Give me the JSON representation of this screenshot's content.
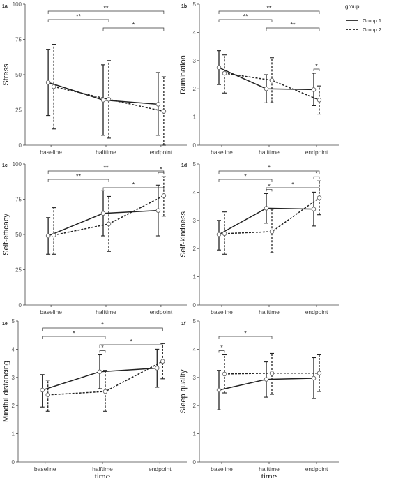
{
  "chart_data": [
    {
      "type": "line",
      "panel_label": "1a",
      "ylabel": "Stress",
      "xlabel": "",
      "categories": [
        "baseline",
        "halftime",
        "endpoint"
      ],
      "ylim": [
        0,
        100
      ],
      "yticks": [
        0,
        25,
        50,
        75,
        100
      ],
      "series": [
        {
          "name": "Group 1",
          "values": [
            44.5,
            32,
            29
          ],
          "lower": [
            21,
            7,
            7
          ],
          "upper": [
            68,
            57,
            51.5
          ]
        },
        {
          "name": "Group 2",
          "values": [
            41.5,
            32.5,
            24
          ],
          "lower": [
            11.5,
            5,
            0
          ],
          "upper": [
            71.5,
            60,
            48.5
          ]
        }
      ],
      "significance": [
        {
          "from": 0,
          "to": 1,
          "label": "**"
        },
        {
          "from": 0,
          "to": 2,
          "label": "**"
        },
        {
          "from": 1,
          "to": 2,
          "label": "*"
        }
      ]
    },
    {
      "type": "line",
      "panel_label": "1b",
      "ylabel": "Rumination",
      "xlabel": "",
      "categories": [
        "baseline",
        "halftime",
        "endpoint"
      ],
      "ylim": [
        0,
        5
      ],
      "yticks": [
        0,
        1,
        2,
        3,
        4,
        5
      ],
      "series": [
        {
          "name": "Group 1",
          "values": [
            2.75,
            2.0,
            1.97
          ],
          "lower": [
            2.15,
            1.5,
            1.4
          ],
          "upper": [
            3.35,
            2.5,
            2.55
          ]
        },
        {
          "name": "Group 2",
          "values": [
            2.55,
            2.3,
            1.6
          ],
          "lower": [
            1.85,
            1.5,
            1.1
          ],
          "upper": [
            3.2,
            3.1,
            2.1
          ]
        }
      ],
      "significance": [
        {
          "from": 0,
          "to": 1,
          "label": "**"
        },
        {
          "from": 0,
          "to": 2,
          "label": "**"
        },
        {
          "from": 1,
          "to": 2,
          "label": "**"
        },
        {
          "from": 2,
          "to": 2,
          "label": "*"
        }
      ]
    },
    {
      "type": "line",
      "panel_label": "1c",
      "ylabel": "Self-efficacy",
      "xlabel": "",
      "categories": [
        "baseline",
        "halftime",
        "endpoint"
      ],
      "ylim": [
        0,
        100
      ],
      "yticks": [
        0,
        25,
        50,
        75,
        100
      ],
      "series": [
        {
          "name": "Group 1",
          "values": [
            49,
            65,
            67
          ],
          "lower": [
            36,
            49,
            49
          ],
          "upper": [
            62,
            81,
            85
          ]
        },
        {
          "name": "Group 2",
          "values": [
            49.5,
            57.5,
            77.5
          ],
          "lower": [
            36,
            38,
            63
          ],
          "upper": [
            69,
            77,
            91
          ]
        }
      ],
      "significance": [
        {
          "from": 0,
          "to": 1,
          "label": "**"
        },
        {
          "from": 0,
          "to": 2,
          "label": "**"
        },
        {
          "from": 1,
          "to": 2,
          "label": "*"
        },
        {
          "from": 2,
          "to": 2,
          "label": "*"
        }
      ]
    },
    {
      "type": "line",
      "panel_label": "1d",
      "ylabel": "Self-kindness",
      "xlabel": "",
      "categories": [
        "baseline",
        "halftime",
        "endpoint"
      ],
      "ylim": [
        0,
        5
      ],
      "yticks": [
        0,
        1,
        2,
        3,
        4,
        5
      ],
      "series": [
        {
          "name": "Group 1",
          "values": [
            2.5,
            3.43,
            3.4
          ],
          "lower": [
            1.95,
            2.9,
            2.8
          ],
          "upper": [
            3.0,
            3.95,
            4.0
          ]
        },
        {
          "name": "Group 2",
          "values": [
            2.53,
            2.6,
            3.8
          ],
          "lower": [
            1.8,
            1.85,
            3.2
          ],
          "upper": [
            3.3,
            3.4,
            4.4
          ]
        }
      ],
      "significance": [
        {
          "from": 0,
          "to": 1,
          "label": "*"
        },
        {
          "from": 0,
          "to": 2,
          "label": "*"
        },
        {
          "from": 1,
          "to": 2,
          "label": "*"
        },
        {
          "from": 1,
          "to": 1,
          "label": "*"
        },
        {
          "from": 2,
          "to": 2,
          "label": "*"
        }
      ]
    },
    {
      "type": "line",
      "panel_label": "1e",
      "ylabel": "Mindful distancing",
      "xlabel": "time",
      "categories": [
        "baseline",
        "halftime",
        "endpoint"
      ],
      "ylim": [
        0,
        5
      ],
      "yticks": [
        0,
        1,
        2,
        3,
        4,
        5
      ],
      "series": [
        {
          "name": "Group 1",
          "values": [
            2.55,
            3.2,
            3.33
          ],
          "lower": [
            1.95,
            2.6,
            2.65
          ],
          "upper": [
            3.1,
            3.8,
            4.0
          ]
        },
        {
          "name": "Group 2",
          "values": [
            2.38,
            2.5,
            3.57
          ],
          "lower": [
            1.8,
            1.8,
            2.95
          ],
          "upper": [
            2.9,
            3.25,
            4.2
          ]
        }
      ],
      "significance": [
        {
          "from": 0,
          "to": 1,
          "label": "*"
        },
        {
          "from": 0,
          "to": 2,
          "label": "*"
        },
        {
          "from": 1,
          "to": 2,
          "label": "*"
        },
        {
          "from": 1,
          "to": 1,
          "label": "*"
        }
      ]
    },
    {
      "type": "line",
      "panel_label": "1f",
      "ylabel": "Sleep quality",
      "xlabel": "time",
      "categories": [
        "baseline",
        "halftime",
        "endpoint"
      ],
      "ylim": [
        0,
        5
      ],
      "yticks": [
        0,
        1,
        2,
        3,
        4,
        5
      ],
      "series": [
        {
          "name": "Group 1",
          "values": [
            2.55,
            2.93,
            2.97
          ],
          "lower": [
            1.85,
            2.3,
            2.25
          ],
          "upper": [
            3.25,
            3.55,
            3.7
          ]
        },
        {
          "name": "Group 2",
          "values": [
            3.12,
            3.15,
            3.15
          ],
          "lower": [
            2.45,
            2.4,
            2.5
          ],
          "upper": [
            3.8,
            3.85,
            3.8
          ]
        }
      ],
      "significance": [
        {
          "from": 0,
          "to": 1,
          "label": "*"
        },
        {
          "from": 0,
          "to": 0,
          "label": "*"
        }
      ]
    }
  ],
  "legend": {
    "title": "group",
    "entries": [
      {
        "label": "Group 1",
        "style": "solid"
      },
      {
        "label": "Group 2",
        "style": "dashed"
      }
    ],
    "placement": "top-right"
  },
  "colors": {
    "line": "#222222",
    "marker_fill": "#ffffff",
    "axis": "#444444"
  }
}
